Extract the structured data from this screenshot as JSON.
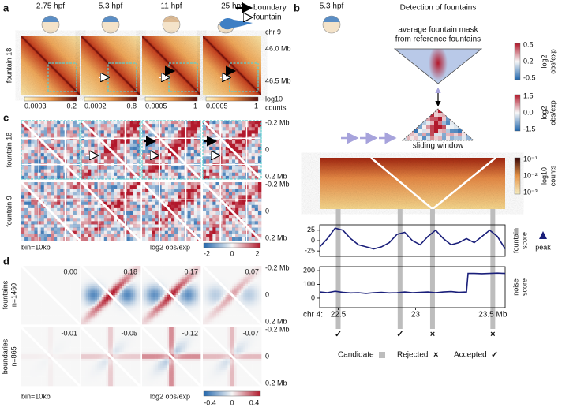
{
  "panels": {
    "a": {
      "label": "a",
      "stages": [
        "2.75 hpf",
        "5.3 hpf",
        "11 hpf",
        "25 hpf"
      ],
      "legend": [
        "boundary",
        "fountain"
      ],
      "row": "fountain 18",
      "chrom": "chr 9",
      "ticks": [
        "46.0 Mb",
        "46.5 Mb"
      ],
      "colorbars": [
        [
          "0.0003",
          "0.2"
        ],
        [
          "0.0002",
          "0.8"
        ],
        [
          "0.0005",
          "1"
        ],
        [
          "0.0005",
          "1"
        ]
      ],
      "colorbar_title": [
        "log10",
        "counts"
      ]
    },
    "b": {
      "label": "b",
      "stage": "5.3 hpf",
      "title": "Detection of fountains",
      "mask_title": [
        "average fountain mask",
        "from reference fountains"
      ],
      "cb1": {
        "ticks": [
          "0.5",
          "0.2",
          "-0.5"
        ],
        "title": [
          "log2",
          "obs/exp"
        ]
      },
      "window": "sliding window",
      "cb2": {
        "ticks": [
          "1.5",
          "0.0",
          "-1.5"
        ],
        "title": [
          "log2",
          "obs/exp"
        ]
      },
      "cb3": {
        "ticks": [
          "10⁻¹",
          "10⁻²",
          "10⁻³"
        ],
        "title": [
          "log10",
          "counts"
        ]
      },
      "fountain_score": {
        "label": [
          "fountain",
          "score"
        ],
        "yticks": [
          25,
          0,
          -25
        ],
        "ylim": [
          -38,
          38
        ],
        "x": [
          22.38,
          22.43,
          22.48,
          22.53,
          22.58,
          22.63,
          22.68,
          22.73,
          22.78,
          22.83,
          22.88,
          22.93,
          22.98,
          23.03,
          23.08,
          23.13,
          23.18,
          23.23,
          23.28,
          23.33,
          23.38,
          23.43,
          23.48,
          23.53,
          23.58
        ],
        "values": [
          -15,
          5,
          30,
          25,
          5,
          -10,
          -15,
          -20,
          -15,
          -5,
          15,
          20,
          0,
          -10,
          10,
          25,
          5,
          -10,
          -5,
          5,
          -5,
          10,
          25,
          10,
          -20
        ]
      },
      "peak": "peak",
      "noise_score": {
        "label": [
          "noise",
          "score"
        ],
        "yticks": [
          200,
          100,
          0
        ],
        "ylim": [
          -69,
          229
        ],
        "x": [
          22.38,
          22.43,
          22.48,
          22.53,
          22.58,
          22.63,
          22.68,
          22.73,
          22.78,
          22.83,
          22.88,
          22.93,
          22.98,
          23.03,
          23.08,
          23.13,
          23.18,
          23.23,
          23.28,
          23.33,
          23.34,
          23.38,
          23.43,
          23.48,
          23.53,
          23.58
        ],
        "values": [
          45,
          40,
          50,
          42,
          38,
          40,
          35,
          40,
          42,
          38,
          40,
          45,
          40,
          42,
          45,
          40,
          45,
          48,
          42,
          45,
          180,
          180,
          178,
          180,
          182,
          180
        ]
      },
      "xaxis": {
        "chrom": "chr 4:",
        "xlim": [
          22.38,
          23.58
        ],
        "xticks": [
          22.5,
          23,
          {
            "value": 23.5,
            "label": "23.5 Mb"
          }
        ]
      },
      "candidates": {
        "x": [
          22.5,
          22.9,
          23.11,
          23.5
        ],
        "status": [
          "✓",
          "✓",
          "×",
          "×"
        ]
      },
      "legend": {
        "candidate": "Candidate",
        "rejected": "Rejected",
        "rejected_symbol": "×",
        "accepted": "Accepted",
        "accepted_symbol": "✓"
      }
    },
    "c": {
      "label": "c",
      "rows": [
        "fountain 18",
        "fountain 9"
      ],
      "ticks": [
        "-0.2 Mb",
        "0",
        "0.2 Mb"
      ],
      "bin": "bin=10kb",
      "colorbar_title": "log2 obs/exp",
      "colorbar_ticks": [
        "-2",
        "0",
        "2"
      ]
    },
    "d": {
      "label": "d",
      "rows": [
        [
          "fountains",
          "n=1460"
        ],
        [
          "boundaries",
          "n=865"
        ]
      ],
      "scores": [
        [
          "0.00",
          "0.18",
          "0.17",
          "0.07"
        ],
        [
          "-0.01",
          "-0.05",
          "-0.12",
          "-0.07"
        ]
      ],
      "ticks": [
        "-0.2 Mb",
        "0",
        "0.2 Mb"
      ],
      "bin": "bin=10kb",
      "colorbar_title": "log2 obs/exp",
      "colorbar_ticks": [
        "-0.4",
        "0",
        "0.4"
      ]
    }
  }
}
